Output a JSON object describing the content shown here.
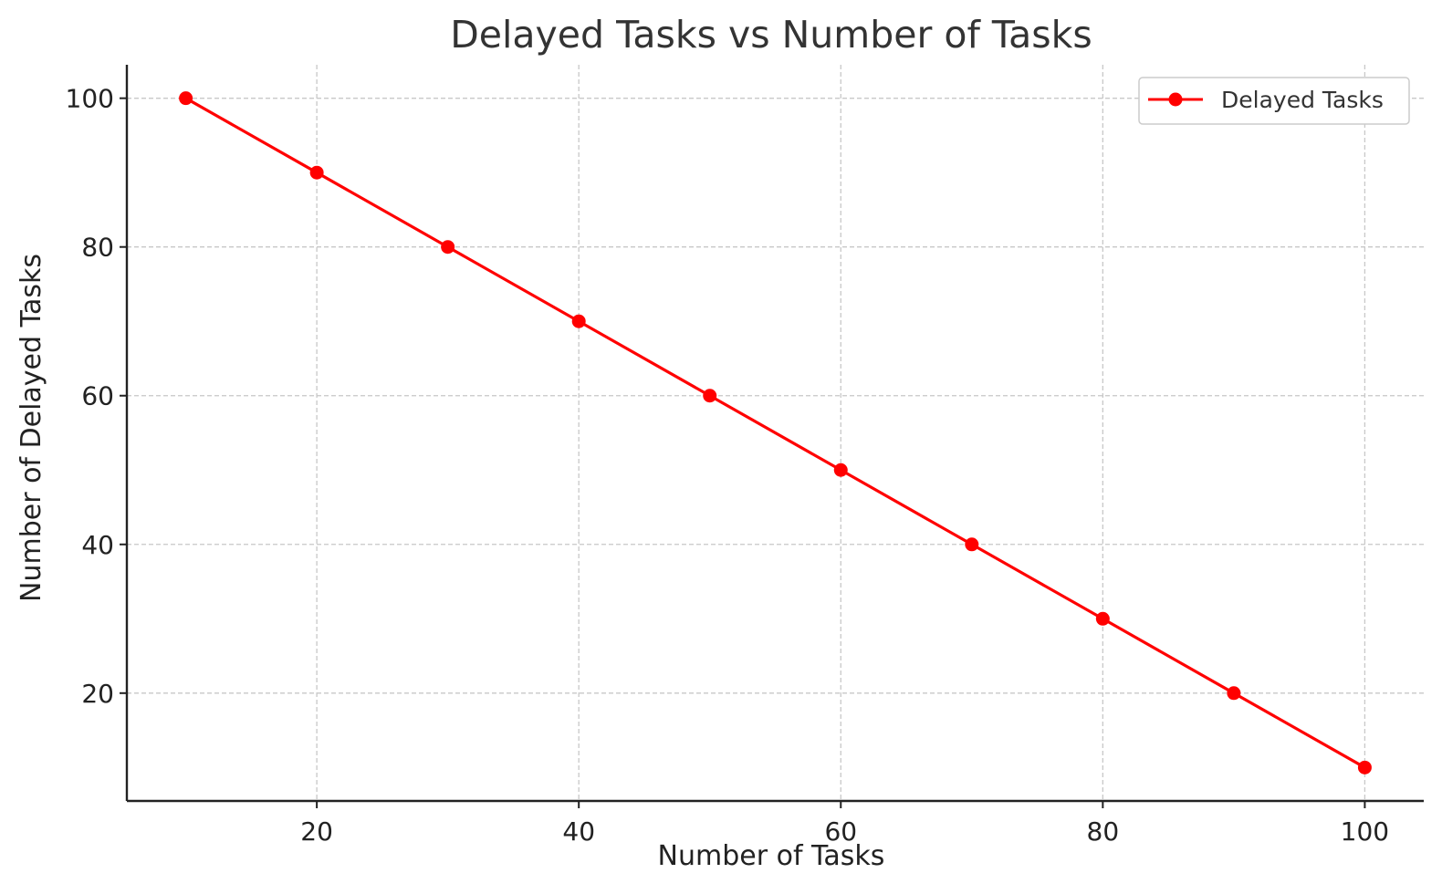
{
  "chart_data": {
    "type": "line",
    "title": "Delayed Tasks vs Number of Tasks",
    "xlabel": "Number of Tasks",
    "ylabel": "Number of Delayed Tasks",
    "xlim": [
      5.5,
      104.5
    ],
    "ylim": [
      5.5,
      104.5
    ],
    "xticks": [
      20,
      40,
      60,
      80,
      100
    ],
    "yticks": [
      20,
      40,
      60,
      80,
      100
    ],
    "grid": true,
    "legend_position": "top-right",
    "series": [
      {
        "name": "Delayed Tasks",
        "color": "#ff0000",
        "marker": "circle",
        "x": [
          10,
          20,
          30,
          40,
          50,
          60,
          70,
          80,
          90,
          100
        ],
        "y": [
          100,
          90,
          80,
          70,
          60,
          50,
          40,
          30,
          20,
          10
        ]
      }
    ]
  }
}
